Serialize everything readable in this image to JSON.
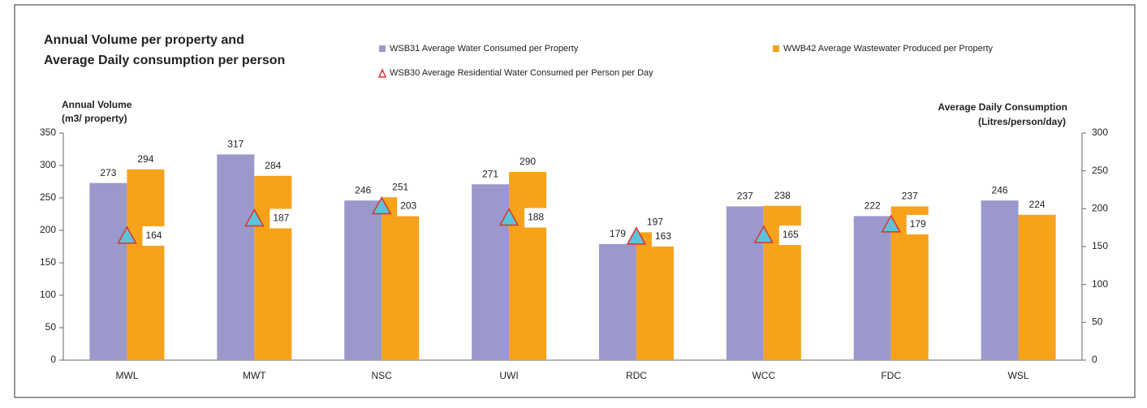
{
  "chart_data": {
    "type": "bar",
    "title": [
      "Annual Volume per property and",
      "Average Daily consumption per person"
    ],
    "y_label": [
      "Annual Volume",
      "(m3/ property)"
    ],
    "y2_label": [
      "Average Daily Consumption",
      "(Litres/person/day)"
    ],
    "categories": [
      "MWL",
      "MWT",
      "NSC",
      "UWI",
      "RDC",
      "WCC",
      "FDC",
      "WSL"
    ],
    "series": [
      {
        "name": "WSB31 Average Water Consumed per Property",
        "color": "#9b99cc",
        "values": [
          273,
          317,
          246,
          271,
          179,
          237,
          222,
          246
        ]
      },
      {
        "name": "WWB42 Average Wastewater Produced per Property",
        "color": "#f7a21b",
        "values": [
          294,
          284,
          251,
          290,
          197,
          238,
          237,
          224
        ]
      },
      {
        "name": "WSB30 Average Residential Water Consumed per Person per Day",
        "color": "#5bc4d8",
        "type": "scatter",
        "axis": "y2",
        "values": [
          164,
          187,
          203,
          188,
          163,
          165,
          179,
          null
        ]
      }
    ],
    "ylim": [
      0,
      350
    ],
    "yticks": [
      0,
      50,
      100,
      150,
      200,
      250,
      300,
      350
    ],
    "y2lim": [
      0,
      300
    ],
    "y2ticks": [
      0,
      50,
      100,
      150,
      200,
      250,
      300
    ]
  }
}
